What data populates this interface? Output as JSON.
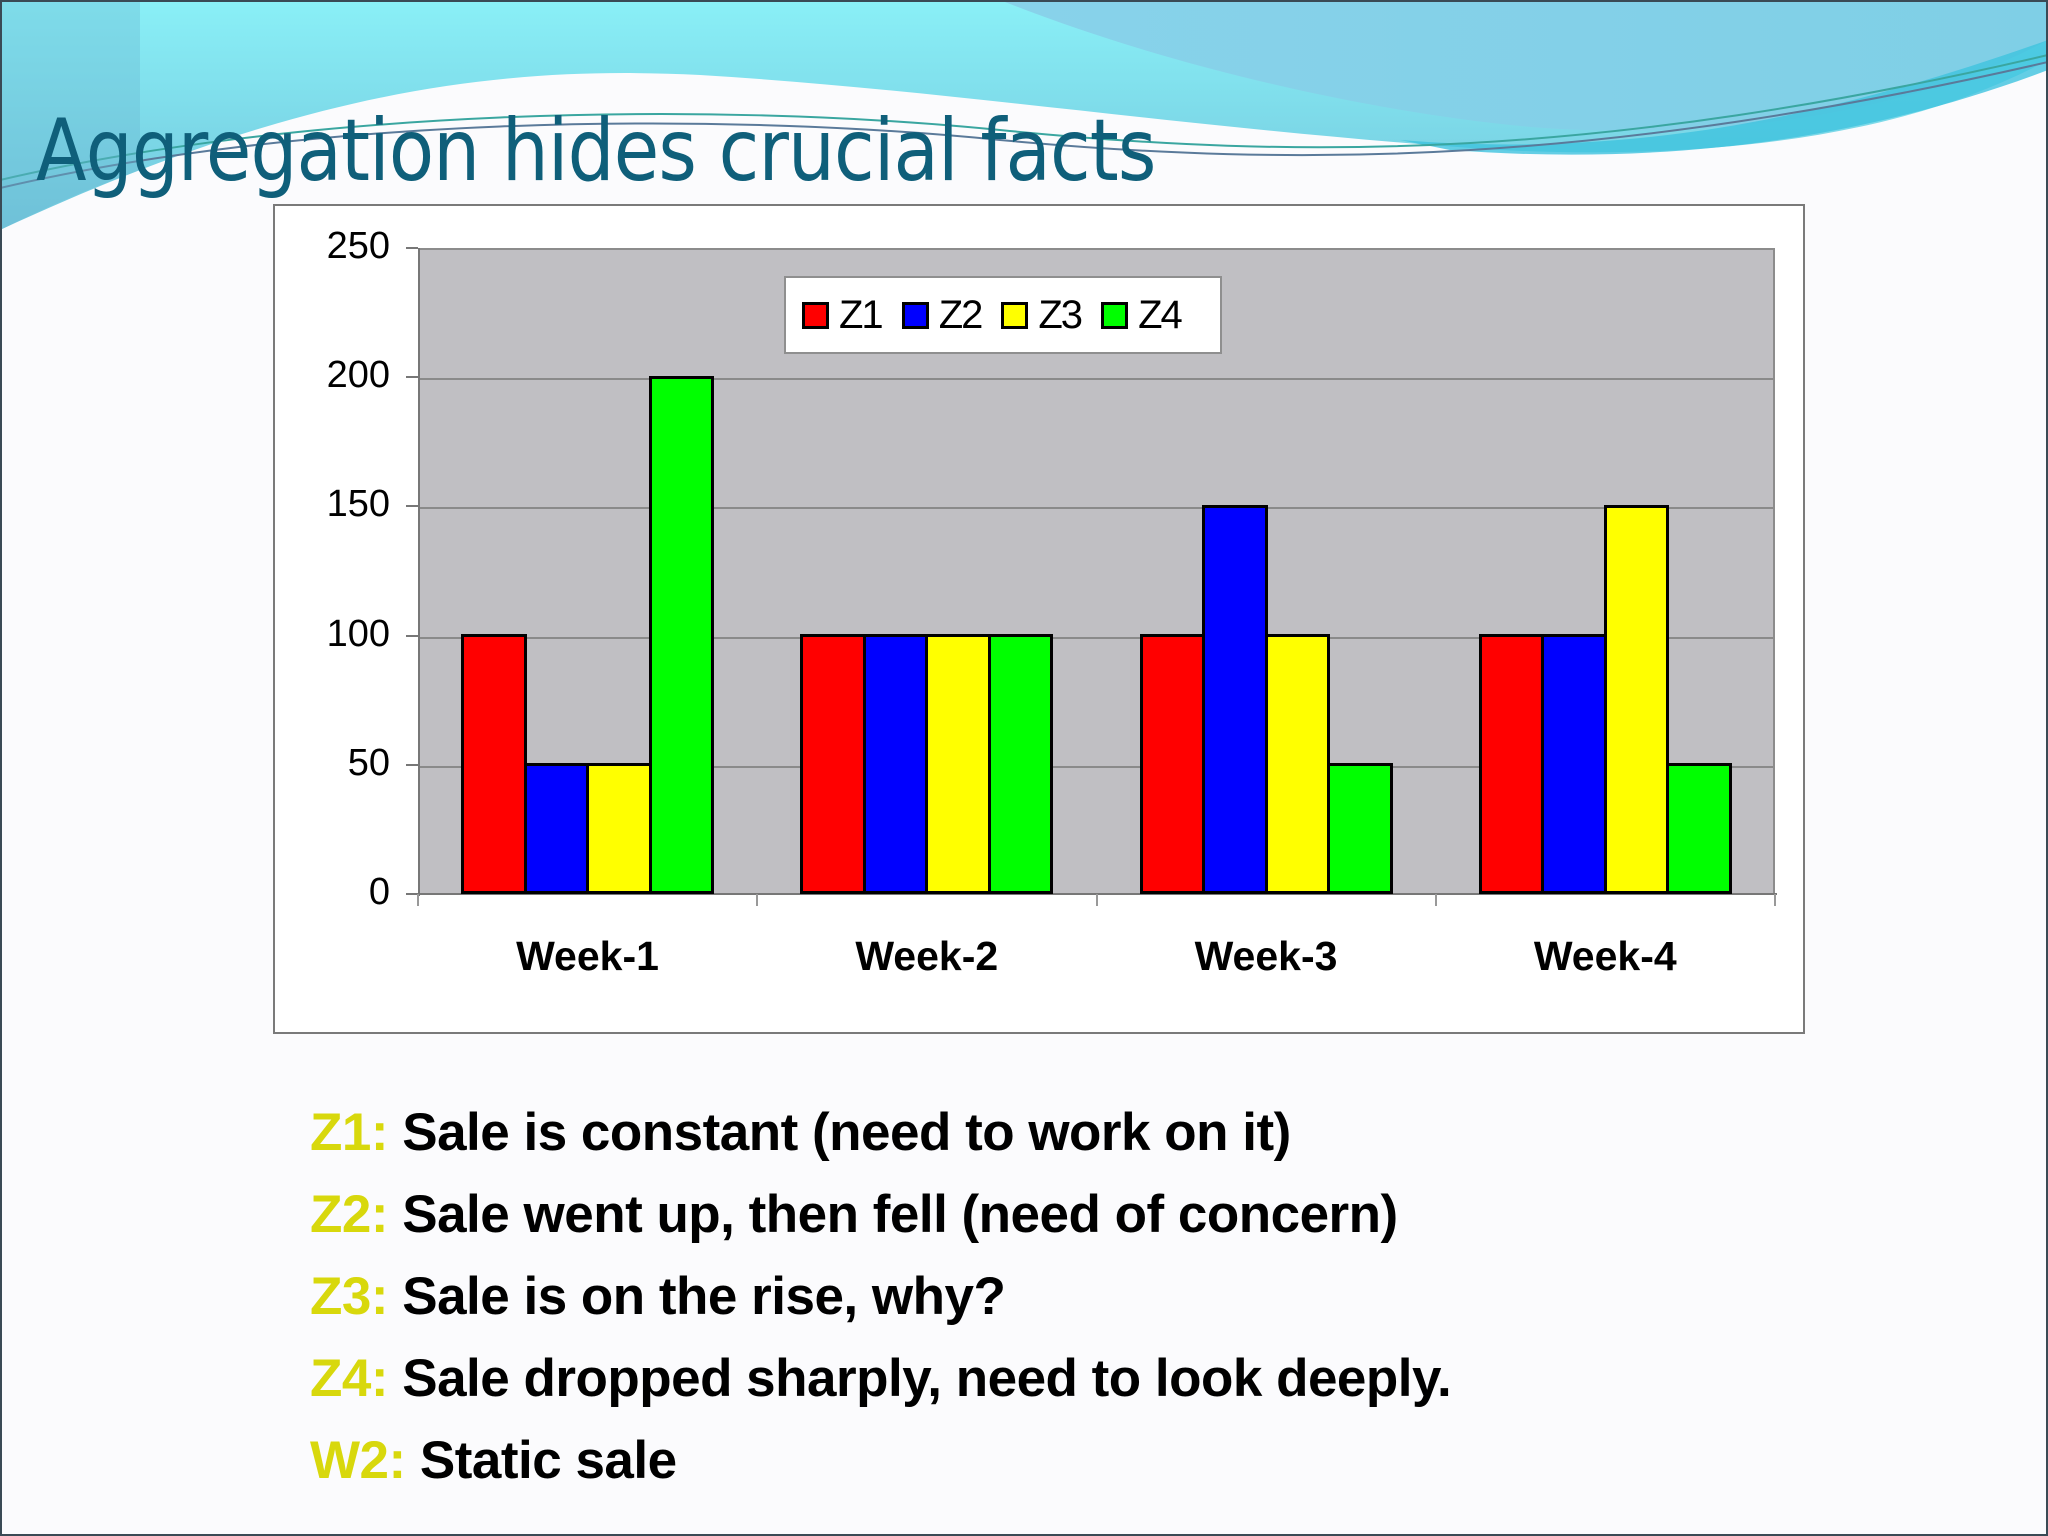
{
  "slide": {
    "title": "Aggregation hides crucial facts"
  },
  "chart_data": {
    "type": "bar",
    "title": "",
    "xlabel": "",
    "ylabel": "",
    "categories": [
      "Week-1",
      "Week-2",
      "Week-3",
      "Week-4"
    ],
    "series": [
      {
        "name": "Z1",
        "color": "#ff0000",
        "values": [
          100,
          100,
          100,
          100
        ]
      },
      {
        "name": "Z2",
        "color": "#0000ff",
        "values": [
          50,
          100,
          150,
          100
        ]
      },
      {
        "name": "Z3",
        "color": "#ffff00",
        "values": [
          50,
          100,
          100,
          150
        ]
      },
      {
        "name": "Z4",
        "color": "#00ff00",
        "values": [
          200,
          100,
          50,
          50
        ]
      }
    ],
    "ylim": [
      0,
      250
    ],
    "yticks": [
      0,
      50,
      100,
      150,
      200,
      250
    ],
    "grid": true,
    "legend_position": "top-center inside plot",
    "plot_background": "#c0bfc3"
  },
  "notes": [
    {
      "key": "Z1:",
      "text": "Sale is constant (need to work on it)"
    },
    {
      "key": "Z2:",
      "text": "Sale went up, then fell (need of concern)"
    },
    {
      "key": "Z3:",
      "text": "Sale is on the rise, why?"
    },
    {
      "key": "Z4:",
      "text": "Sale dropped sharply, need to look deeply."
    },
    {
      "key": "W2:",
      "text": "Static sale"
    }
  ],
  "colors": {
    "title": "#0f5f7a",
    "note_key": "#d8d80c",
    "note_text": "#000000"
  }
}
